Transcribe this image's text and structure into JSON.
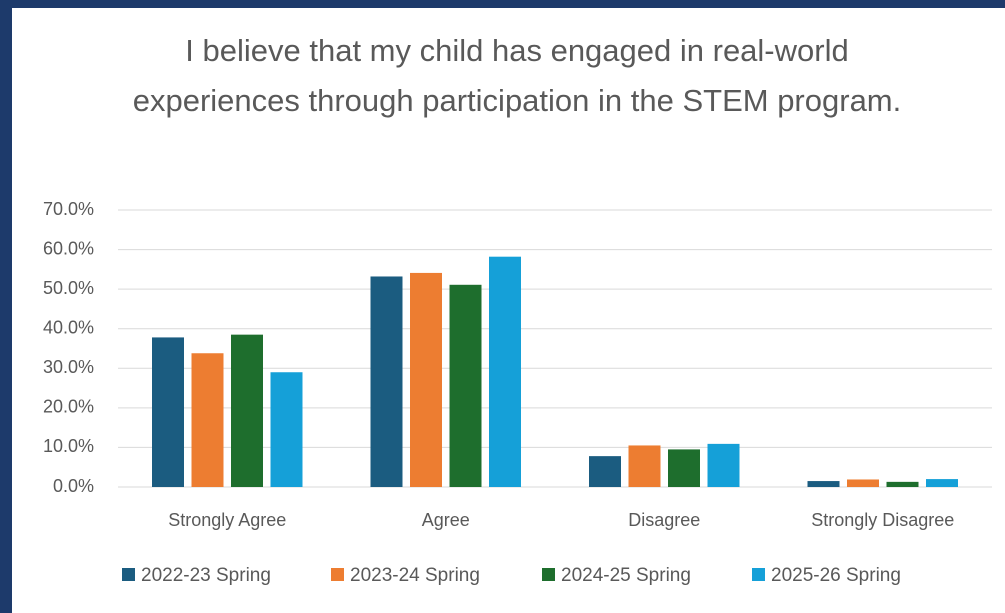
{
  "chart_data": {
    "type": "bar",
    "title": "I believe that my child has engaged in real-world experiences through participation in the STEM program.",
    "categories": [
      "Strongly Agree",
      "Agree",
      "Disagree",
      "Strongly Disagree"
    ],
    "series": [
      {
        "name": "2022-23 Spring",
        "color": "#1b5c80",
        "values": [
          37.8,
          53.2,
          7.8,
          1.5
        ]
      },
      {
        "name": "2023-24 Spring",
        "color": "#ed7d31",
        "values": [
          33.8,
          54.1,
          10.5,
          1.9
        ]
      },
      {
        "name": "2024-25 Spring",
        "color": "#1e6e2d",
        "values": [
          38.5,
          51.1,
          9.5,
          1.3
        ]
      },
      {
        "name": "2025-26 Spring",
        "color": "#15a0d8",
        "values": [
          29.0,
          58.2,
          10.9,
          2.0
        ]
      }
    ],
    "ylim": [
      0,
      70
    ],
    "yticks": [
      {
        "value": 0,
        "label": "0.0%"
      },
      {
        "value": 10,
        "label": "10.0%"
      },
      {
        "value": 20,
        "label": "20.0%"
      },
      {
        "value": 30,
        "label": "30.0%"
      },
      {
        "value": 40,
        "label": "40.0%"
      },
      {
        "value": 50,
        "label": "50.0%"
      },
      {
        "value": 60,
        "label": "60.0%"
      },
      {
        "value": 70,
        "label": "70.0%"
      }
    ],
    "grid": true,
    "legend": "bottom"
  }
}
